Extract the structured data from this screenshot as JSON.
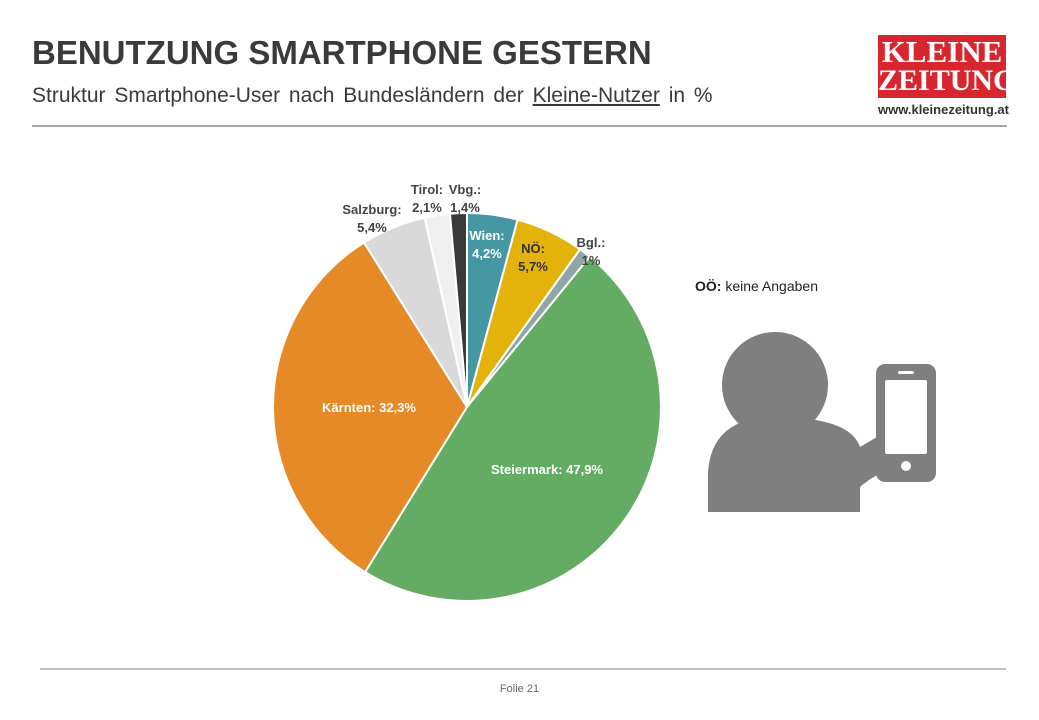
{
  "header": {
    "title": "BENUTZUNG SMARTPHONE GESTERN",
    "subtitle_pre": "Struktur Smartphone-User nach Bundesländern der",
    "subtitle_link": "Kleine-Nutzer",
    "subtitle_post": "in %"
  },
  "logo": {
    "line1": "KLEINE",
    "line2": "ZEITUNG",
    "url": "www.kleinezeitung.at",
    "color": "#d7262e"
  },
  "note": {
    "label": "OÖ:",
    "text": "keine Angaben"
  },
  "footer": {
    "text": "Folie  21"
  },
  "chart_data": {
    "type": "pie",
    "title": "",
    "start": "12 o'clock, clockwise",
    "slices": [
      {
        "label": "Wien:",
        "value_text": "4,2%",
        "value": 4.2,
        "color": "#4497a3"
      },
      {
        "label": "NÖ:",
        "value_text": "5,7%",
        "value": 5.7,
        "color": "#e4b30b"
      },
      {
        "label": "Bgl.:",
        "value_text": "1%",
        "value": 1.0,
        "color": "#8fa6a6"
      },
      {
        "label": "Steiermark:",
        "value_text": "47,9%",
        "value": 47.9,
        "color": "#64ac63"
      },
      {
        "label": "Kärnten:",
        "value_text": "32,3%",
        "value": 32.3,
        "color": "#e68a27"
      },
      {
        "label": "Salzburg:",
        "value_text": "5,4%",
        "value": 5.4,
        "color": "#d9d9d9"
      },
      {
        "label": "Tirol:",
        "value_text": "2,1%",
        "value": 2.1,
        "color": "#efefef"
      },
      {
        "label": "Vbg.:",
        "value_text": "1,4%",
        "value": 1.4,
        "color": "#3a3a3a"
      }
    ]
  }
}
